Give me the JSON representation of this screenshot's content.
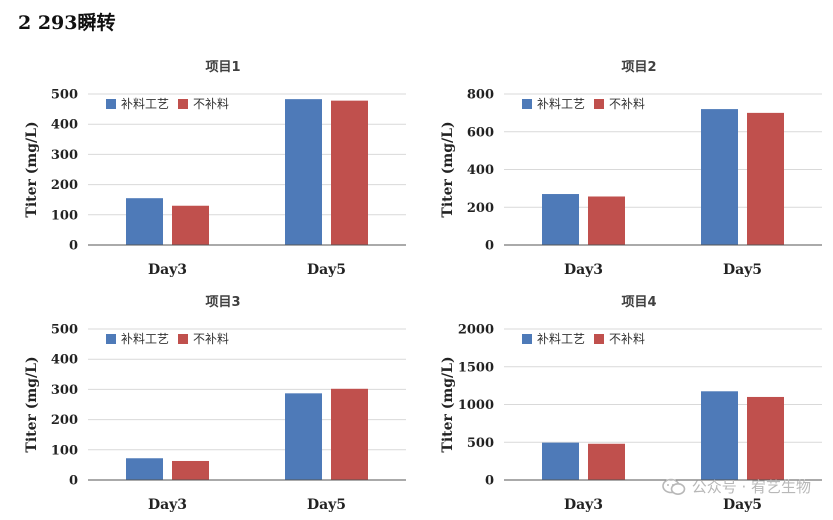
{
  "heading": "2  293瞬转",
  "watermark": "公众号 · 宥艺生物",
  "colors": {
    "series1": "#4e7ab8",
    "series2": "#c0504d"
  },
  "chart_data": [
    {
      "type": "bar",
      "title": "项目1",
      "categories": [
        "Day3",
        "Day5"
      ],
      "series": [
        {
          "name": "补料工艺",
          "values": [
            155,
            483
          ]
        },
        {
          "name": "不补料",
          "values": [
            130,
            478
          ]
        }
      ],
      "ylabel": "Titer (mg/L)",
      "ylim": [
        0,
        500
      ],
      "yticks": [
        0,
        100,
        200,
        300,
        400,
        500
      ],
      "legend": "top-left",
      "grid": true
    },
    {
      "type": "bar",
      "title": "项目2",
      "categories": [
        "Day3",
        "Day5"
      ],
      "series": [
        {
          "name": "补料工艺",
          "values": [
            270,
            720
          ]
        },
        {
          "name": "不补料",
          "values": [
            257,
            700
          ]
        }
      ],
      "ylabel": "Titer (mg/L)",
      "ylim": [
        0,
        800
      ],
      "yticks": [
        0,
        200,
        400,
        600,
        800
      ],
      "legend": "top-left",
      "grid": true
    },
    {
      "type": "bar",
      "title": "项目3",
      "categories": [
        "Day3",
        "Day5"
      ],
      "series": [
        {
          "name": "补料工艺",
          "values": [
            72,
            287
          ]
        },
        {
          "name": "不补料",
          "values": [
            63,
            302
          ]
        }
      ],
      "ylabel": "Titer (mg/L)",
      "ylim": [
        0,
        500
      ],
      "yticks": [
        0,
        100,
        200,
        300,
        400,
        500
      ],
      "legend": "top-left",
      "grid": true
    },
    {
      "type": "bar",
      "title": "项目4",
      "categories": [
        "Day3",
        "Day5"
      ],
      "series": [
        {
          "name": "补料工艺",
          "values": [
            495,
            1175
          ]
        },
        {
          "name": "不补料",
          "values": [
            480,
            1100
          ]
        }
      ],
      "ylabel": "Titer (mg/L)",
      "ylim": [
        0,
        2000
      ],
      "yticks": [
        0,
        500,
        1000,
        1500,
        2000
      ],
      "legend": "top-left",
      "grid": true
    }
  ]
}
